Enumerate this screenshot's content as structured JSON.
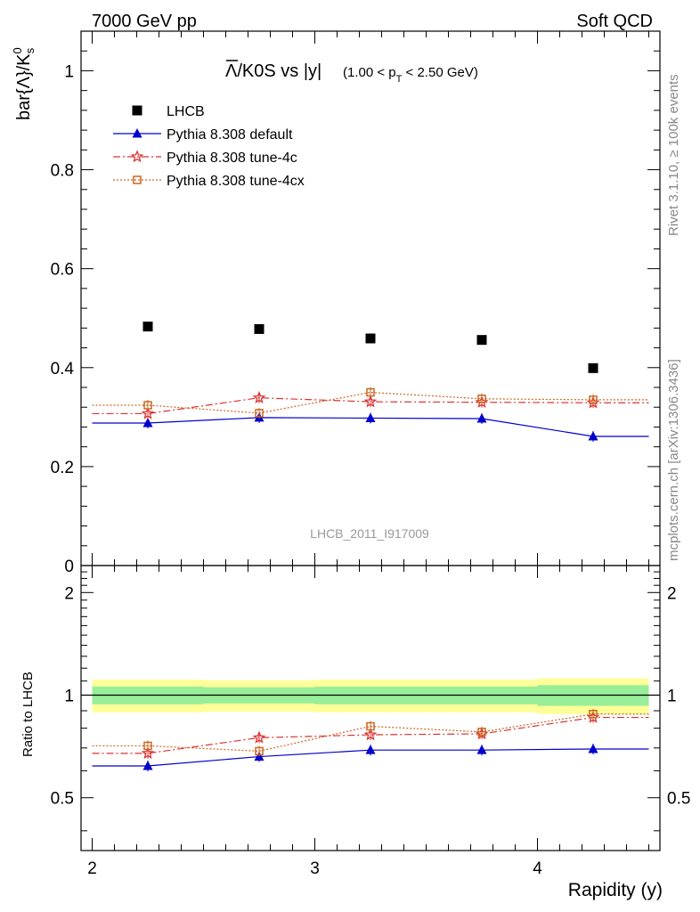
{
  "header": {
    "left": "7000 GeV pp",
    "right": "Soft QCD"
  },
  "title": {
    "main": "Λ/K0S vs |y|",
    "bar_symbol": "Λ",
    "rest": "/K0S vs |y|",
    "cut_prefix": "(1.00 < p",
    "cut_sub": "T",
    "cut_suffix": " < 2.50 GeV)"
  },
  "side_labels": {
    "rivet": "Rivet 3.1.10, ≥ 100k events",
    "mcplots": "mcplots.cern.ch [arXiv:1306.3436]"
  },
  "watermark": "LHCB_2011_I917009",
  "axes": {
    "ylabel_main": "bar{Λ}/K",
    "ylabel_main_sup": "0",
    "ylabel_main_sub": "s",
    "ylabel_ratio": "Ratio to LHCB",
    "xlabel": "Rapidity (y)",
    "main_yticks": [
      "0",
      "0.2",
      "0.4",
      "0.6",
      "0.8",
      "1"
    ],
    "ratio_yticks": [
      "0.5",
      "1",
      "2"
    ],
    "xticks": [
      "2",
      "3",
      "4"
    ]
  },
  "legend": [
    {
      "label": "LHCB",
      "color": "#000000",
      "marker": "square"
    },
    {
      "label": "Pythia 8.308 default",
      "color": "#0000cc",
      "marker": "triangle"
    },
    {
      "label": "Pythia 8.308 tune-4c",
      "color": "#dd3333",
      "marker": "star"
    },
    {
      "label": "Pythia 8.308 tune-4cx",
      "color": "#cc6622",
      "marker": "open-square"
    }
  ],
  "chart_data": {
    "type": "scatter",
    "x_range": [
      1.95,
      4.55
    ],
    "main_ylim": [
      0,
      1.08
    ],
    "ratio_ylim": [
      0.35,
      2.4
    ],
    "ratio_log_scale": true,
    "x": [
      2.25,
      2.75,
      3.25,
      3.75,
      4.25
    ],
    "bin_edges": [
      2.0,
      2.5,
      3.0,
      3.5,
      4.0,
      4.5
    ],
    "series": [
      {
        "name": "LHCB",
        "values": [
          0.483,
          0.478,
          0.459,
          0.456,
          0.399
        ]
      },
      {
        "name": "Pythia 8.308 default",
        "values": [
          0.288,
          0.299,
          0.298,
          0.297,
          0.261
        ]
      },
      {
        "name": "Pythia 8.308 tune-4c",
        "values": [
          0.307,
          0.339,
          0.331,
          0.33,
          0.329
        ]
      },
      {
        "name": "Pythia 8.308 tune-4cx",
        "values": [
          0.324,
          0.308,
          0.35,
          0.337,
          0.335
        ]
      }
    ],
    "ratio_series": [
      {
        "name": "Pythia 8.308 default",
        "values": [
          0.62,
          0.66,
          0.69,
          0.69,
          0.695
        ]
      },
      {
        "name": "Pythia 8.308 tune-4c",
        "values": [
          0.675,
          0.75,
          0.765,
          0.77,
          0.86
        ]
      },
      {
        "name": "Pythia 8.308 tune-4cx",
        "values": [
          0.71,
          0.685,
          0.81,
          0.78,
          0.88
        ]
      }
    ],
    "ratio_bands": {
      "green_halfwidth": [
        0.06,
        0.055,
        0.06,
        0.06,
        0.07
      ],
      "yellow_halfwidth": [
        0.11,
        0.105,
        0.11,
        0.11,
        0.12
      ]
    }
  }
}
